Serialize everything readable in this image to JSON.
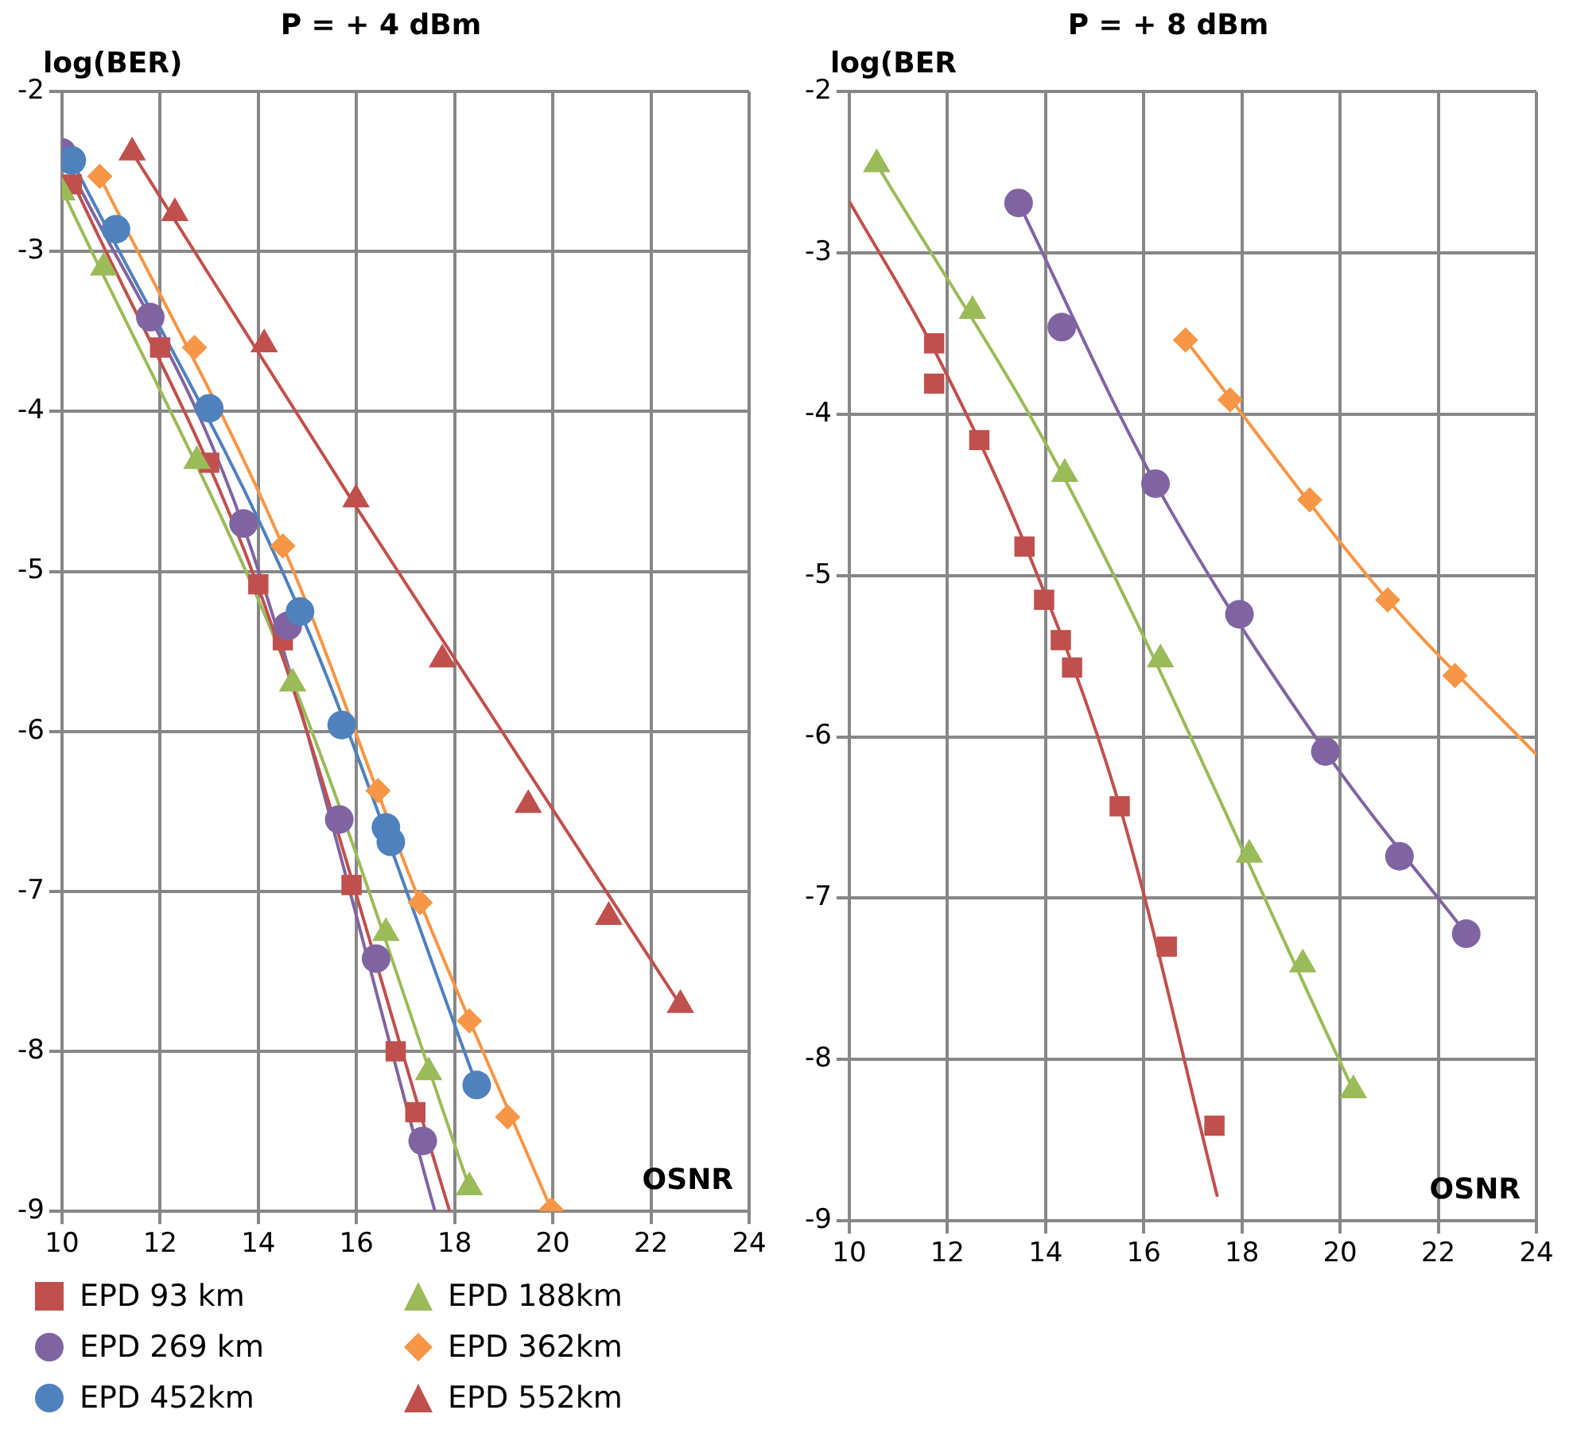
{
  "chart_data": [
    {
      "type": "scatter",
      "title": "P = + 4 dBm",
      "ylabel": "log(BER)",
      "xlabel": "OSNR",
      "xlim": [
        10,
        24
      ],
      "xticks": [
        10,
        12,
        14,
        16,
        18,
        20,
        22,
        24
      ],
      "ylim": [
        -9,
        -2
      ],
      "yticks": [
        -9,
        -8,
        -7,
        -6,
        -5,
        -4,
        -3,
        -2
      ],
      "grid": true,
      "legend": "bottom",
      "series": [
        {
          "name": "EPD 93 km",
          "color": "#c0504d",
          "marker": "square",
          "x": [
            10.2,
            12.0,
            13.0,
            14.0,
            14.5,
            15.9,
            16.8,
            17.2
          ],
          "values": [
            -2.58,
            -3.6,
            -4.32,
            -5.08,
            -5.43,
            -6.96,
            -8.0,
            -8.38
          ]
        },
        {
          "name": "EPD 188km",
          "color": "#9bbb59",
          "marker": "triangle",
          "x": [
            10.0,
            10.85,
            12.75,
            14.7,
            16.6,
            17.47,
            18.3
          ],
          "values": [
            -2.63,
            -3.1,
            -4.31,
            -5.7,
            -7.26,
            -8.13,
            -8.85
          ]
        },
        {
          "name": "EPD 269 km",
          "color": "#8064a2",
          "marker": "circle",
          "x": [
            10.0,
            11.8,
            13.7,
            14.6,
            15.65,
            16.4,
            17.35
          ],
          "values": [
            -2.38,
            -3.41,
            -4.7,
            -5.34,
            -6.55,
            -7.42,
            -8.56
          ]
        },
        {
          "name": "EPD 362km",
          "color": "#f79646",
          "marker": "diamond",
          "x": [
            10.77,
            12.7,
            14.5,
            16.44,
            17.3,
            18.3,
            19.08,
            19.97
          ],
          "values": [
            -2.53,
            -3.6,
            -4.84,
            -6.37,
            -7.07,
            -7.81,
            -8.41,
            -8.99
          ]
        },
        {
          "name": "EPD 452km",
          "color": "#4f81bd",
          "marker": "circle",
          "x": [
            10.2,
            11.1,
            13.0,
            14.85,
            15.7,
            16.6,
            16.7,
            18.45
          ],
          "values": [
            -2.43,
            -2.86,
            -3.98,
            -5.25,
            -5.96,
            -6.6,
            -6.69,
            -8.21
          ]
        },
        {
          "name": "EPD 552km",
          "color": "#c0504d",
          "marker": "triangle",
          "x": [
            11.43,
            12.3,
            14.12,
            15.99,
            17.75,
            19.5,
            21.14,
            22.6
          ],
          "values": [
            -2.38,
            -2.76,
            -3.58,
            -4.55,
            -5.55,
            -6.46,
            -7.16,
            -7.71
          ]
        },
        {
          "type": "line",
          "color": "#c0504d",
          "marker": "none",
          "x": [
            10.2,
            14.0,
            17.9
          ],
          "values": [
            -2.55,
            -5.1,
            -9.0
          ]
        },
        {
          "type": "line",
          "color": "#9bbb59",
          "marker": "none",
          "x": [
            10.0,
            14.7,
            18.3
          ],
          "values": [
            -2.61,
            -5.69,
            -8.85
          ]
        },
        {
          "type": "line",
          "color": "#8064a2",
          "marker": "none",
          "x": [
            10.0,
            13.7,
            17.6
          ],
          "values": [
            -2.38,
            -4.72,
            -9.0
          ]
        },
        {
          "type": "line",
          "color": "#f79646",
          "marker": "none",
          "x": [
            10.77,
            14.5,
            17.3,
            19.97
          ],
          "values": [
            -2.53,
            -4.84,
            -7.07,
            -8.99
          ]
        },
        {
          "type": "line",
          "color": "#4f81bd",
          "marker": "none",
          "x": [
            10.2,
            14.85,
            18.45
          ],
          "values": [
            -2.43,
            -5.25,
            -8.21
          ]
        },
        {
          "type": "line",
          "color": "#c0504d",
          "marker": "none",
          "x": [
            11.43,
            16.0,
            22.6
          ],
          "values": [
            -2.38,
            -4.6,
            -7.71
          ]
        }
      ]
    },
    {
      "type": "scatter",
      "title": "P = + 8 dBm",
      "ylabel": "log(BER",
      "xlabel": "OSNR",
      "xlim": [
        10,
        24
      ],
      "xticks": [
        10,
        12,
        14,
        16,
        18,
        20,
        22,
        24
      ],
      "ylim": [
        -9,
        -2
      ],
      "yticks": [
        -9,
        -8,
        -7,
        -6,
        -5,
        -4,
        -3,
        -2
      ],
      "grid": true,
      "series": [
        {
          "color": "#c0504d",
          "marker": "square",
          "x": [
            11.73,
            11.73,
            12.65,
            13.57,
            13.97,
            14.31,
            14.54,
            15.51,
            16.47,
            17.44
          ],
          "values": [
            -3.56,
            -3.81,
            -4.16,
            -4.82,
            -5.15,
            -5.4,
            -5.57,
            -6.43,
            -7.3,
            -8.41
          ]
        },
        {
          "color": "#9bbb59",
          "marker": "triangle",
          "x": [
            10.56,
            12.51,
            14.39,
            16.34,
            18.15,
            19.24,
            20.27
          ],
          "values": [
            -2.45,
            -3.36,
            -4.37,
            -5.52,
            -6.73,
            -7.41,
            -8.19
          ]
        },
        {
          "color": "#8064a2",
          "marker": "circle",
          "x": [
            13.45,
            14.33,
            16.24,
            17.95,
            19.7,
            21.21,
            22.57
          ],
          "values": [
            -2.69,
            -3.46,
            -4.43,
            -5.24,
            -6.09,
            -6.74,
            -7.22
          ]
        },
        {
          "color": "#f79646",
          "marker": "diamond",
          "x": [
            16.85,
            17.76,
            19.38,
            20.97,
            22.34
          ],
          "values": [
            -3.54,
            -3.91,
            -4.53,
            -5.15,
            -5.62
          ]
        },
        {
          "type": "line",
          "color": "#c0504d",
          "marker": "none",
          "x": [
            10.0,
            11.73,
            13.57,
            15.51,
            17.5
          ],
          "values": [
            -2.68,
            -3.6,
            -4.8,
            -6.43,
            -8.85
          ]
        },
        {
          "type": "line",
          "color": "#9bbb59",
          "marker": "none",
          "x": [
            10.56,
            14.39,
            20.27
          ],
          "values": [
            -2.45,
            -4.4,
            -8.19
          ]
        },
        {
          "type": "line",
          "color": "#8064a2",
          "marker": "none",
          "x": [
            13.45,
            16.24,
            19.7,
            22.57
          ],
          "values": [
            -2.69,
            -4.43,
            -6.09,
            -7.22
          ]
        },
        {
          "type": "line",
          "color": "#f79646",
          "marker": "none",
          "x": [
            16.85,
            20.97,
            24.0
          ],
          "values": [
            -3.54,
            -5.15,
            -6.11
          ]
        }
      ]
    }
  ]
}
